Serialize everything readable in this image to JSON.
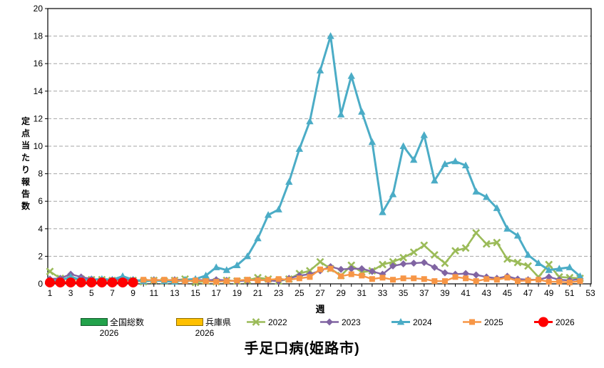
{
  "title": "手足口病(姫路市)",
  "axes": {
    "x_label": "週",
    "y_label": "定点当たり報告数",
    "y_label_chars": [
      "定",
      "点",
      "当",
      "た",
      "り",
      "報",
      "告",
      "数"
    ],
    "y_ticks": [
      0,
      2,
      4,
      6,
      8,
      10,
      12,
      14,
      16,
      18,
      20
    ],
    "x_tick_labels": [
      "1",
      "3",
      "5",
      "7",
      "9",
      "11",
      "13",
      "15",
      "17",
      "19",
      "21",
      "23",
      "25",
      "27",
      "29",
      "31",
      "33",
      "35",
      "37",
      "39",
      "41",
      "43",
      "45",
      "47",
      "49",
      "51",
      "53"
    ],
    "y_max": 20,
    "x_max": 53
  },
  "colors": {
    "grid": "#A6A6A6",
    "axis": "#000000",
    "zenkoku_box_fill": "#22A24B",
    "zenkoku_box_border": "#145A2C",
    "hyogo_box_fill": "#FFC000",
    "hyogo_box_border": "#8F6E00",
    "s2022": "#9BBB59",
    "s2023": "#8064A2",
    "s2024": "#4BACC6",
    "s2025": "#F79646",
    "s2026": "#FF0000"
  },
  "legend": [
    {
      "label": "全国総数",
      "sublabel": "2026",
      "kind": "box",
      "color": "#22A24B",
      "border": "#145A2C"
    },
    {
      "label": "兵庫県",
      "sublabel": "2026",
      "kind": "box",
      "color": "#FFC000",
      "border": "#8F6E00"
    },
    {
      "label": "2022",
      "kind": "line",
      "marker": "x",
      "color": "#9BBB59"
    },
    {
      "label": "2023",
      "kind": "line",
      "marker": "diamond",
      "color": "#8064A2"
    },
    {
      "label": "2024",
      "kind": "line",
      "marker": "triangle",
      "color": "#4BACC6"
    },
    {
      "label": "2025",
      "kind": "line",
      "marker": "square",
      "color": "#F79646"
    },
    {
      "label": "2026",
      "kind": "line",
      "marker": "circle",
      "color": "#FF0000"
    }
  ],
  "chart_data": {
    "type": "line",
    "title": "手足口病(姫路市)",
    "xlabel": "週",
    "ylabel": "定点当たり報告数",
    "ylim": [
      0,
      20
    ],
    "xlim": [
      1,
      53
    ],
    "grid": "horizontal-dashed",
    "legend_position": "bottom",
    "x_weeks": [
      1,
      2,
      3,
      4,
      5,
      6,
      7,
      8,
      9,
      10,
      11,
      12,
      13,
      14,
      15,
      16,
      17,
      18,
      19,
      20,
      21,
      22,
      23,
      24,
      25,
      26,
      27,
      28,
      29,
      30,
      31,
      32,
      33,
      34,
      35,
      36,
      37,
      38,
      39,
      40,
      41,
      42,
      43,
      44,
      45,
      46,
      47,
      48,
      49,
      50,
      51,
      52
    ],
    "series": [
      {
        "name": "全国総数2026",
        "marker": "box",
        "color": "#22A24B",
        "values": []
      },
      {
        "name": "兵庫県2026",
        "marker": "box",
        "color": "#FFC000",
        "values": []
      },
      {
        "name": "2022",
        "marker": "x",
        "color": "#9BBB59",
        "values": [
          0.9,
          0.4,
          0.3,
          0.35,
          0.3,
          0.3,
          0.25,
          0.3,
          0.25,
          0.15,
          0.25,
          0.2,
          0.25,
          0.35,
          0.1,
          0.2,
          0.15,
          0.25,
          0.2,
          0.25,
          0.45,
          0.35,
          0.2,
          0.35,
          0.75,
          0.95,
          1.6,
          1.1,
          0.6,
          1.35,
          0.85,
          0.95,
          1.4,
          1.6,
          1.9,
          2.3,
          2.8,
          2.1,
          1.5,
          2.4,
          2.6,
          3.7,
          2.9,
          3.0,
          1.8,
          1.55,
          1.3,
          0.5,
          1.4,
          0.5,
          0.45,
          0.4
        ]
      },
      {
        "name": "2023",
        "marker": "diamond",
        "color": "#8064A2",
        "values": [
          0.35,
          0.4,
          0.7,
          0.5,
          0.35,
          0.3,
          0.3,
          0.35,
          0.3,
          0.2,
          0.3,
          0.25,
          0.3,
          0.25,
          0.3,
          0.25,
          0.3,
          0.25,
          0.2,
          0.25,
          0.3,
          0.25,
          0.2,
          0.4,
          0.6,
          0.7,
          0.95,
          1.25,
          1.05,
          1.1,
          1.1,
          0.9,
          0.7,
          1.3,
          1.45,
          1.5,
          1.55,
          1.2,
          0.8,
          0.7,
          0.75,
          0.65,
          0.5,
          0.4,
          0.55,
          0.35,
          0.3,
          0.3,
          0.5,
          0.3,
          0.25,
          0.35
        ]
      },
      {
        "name": "2024",
        "marker": "triangle",
        "color": "#4BACC6",
        "values": [
          0.2,
          0.25,
          0.5,
          0.3,
          0.3,
          0.35,
          0.3,
          0.55,
          0.3,
          0.2,
          0.25,
          0.2,
          0.15,
          0.3,
          0.35,
          0.6,
          1.2,
          1.0,
          1.35,
          2.0,
          3.3,
          5.0,
          5.4,
          7.4,
          9.8,
          11.8,
          15.5,
          18.0,
          12.3,
          15.1,
          12.5,
          10.3,
          5.2,
          6.5,
          10.0,
          9.0,
          10.8,
          7.5,
          8.7,
          8.9,
          8.6,
          6.7,
          6.3,
          5.5,
          4.0,
          3.5,
          2.1,
          1.5,
          1.0,
          1.1,
          1.2,
          0.55
        ]
      },
      {
        "name": "2025",
        "marker": "square",
        "color": "#F79646",
        "values": [
          null,
          null,
          null,
          null,
          null,
          null,
          null,
          null,
          null,
          0.3,
          0.25,
          0.3,
          0.25,
          0.2,
          0.25,
          0.2,
          0.15,
          0.2,
          0.25,
          0.3,
          0.25,
          0.3,
          0.35,
          0.3,
          0.4,
          0.5,
          1.05,
          1.1,
          0.55,
          0.7,
          0.6,
          0.35,
          0.45,
          0.3,
          0.4,
          0.4,
          0.35,
          0.2,
          0.2,
          0.5,
          0.4,
          0.2,
          0.35,
          0.3,
          0.45,
          0.2,
          0.25,
          0.3,
          0.15,
          0.15,
          0.1,
          0.2
        ]
      },
      {
        "name": "2026",
        "marker": "circle",
        "color": "#FF0000",
        "values": [
          0.1,
          0.1,
          0.1,
          0.1,
          0.1,
          0.1,
          0.1,
          0.1,
          0.1,
          null,
          null,
          null,
          null,
          null,
          null,
          null,
          null,
          null,
          null,
          null,
          null,
          null,
          null,
          null,
          null,
          null,
          null,
          null,
          null,
          null,
          null,
          null,
          null,
          null,
          null,
          null,
          null,
          null,
          null,
          null,
          null,
          null,
          null,
          null,
          null,
          null,
          null,
          null,
          null,
          null,
          null,
          null
        ]
      }
    ]
  }
}
